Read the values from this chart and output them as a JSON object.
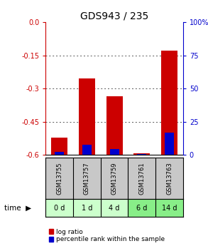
{
  "title": "GDS943 / 235",
  "samples": [
    "GSM13755",
    "GSM13757",
    "GSM13759",
    "GSM13761",
    "GSM13763"
  ],
  "time_labels": [
    "0 d",
    "1 d",
    "4 d",
    "6 d",
    "14 d"
  ],
  "log_ratio": [
    -0.52,
    -0.255,
    -0.335,
    -0.593,
    -0.13
  ],
  "percentile_rank": [
    2.5,
    7.5,
    4.5,
    0.8,
    17
  ],
  "ylim_left": [
    -0.6,
    0.0
  ],
  "ylim_right": [
    0,
    100
  ],
  "yticks_left": [
    0.0,
    -0.15,
    -0.3,
    -0.45,
    -0.6
  ],
  "yticks_right": [
    100,
    75,
    50,
    25,
    0
  ],
  "bar_width": 0.6,
  "red_color": "#cc0000",
  "blue_color": "#0000cc",
  "grid_color": "#555555",
  "plot_bg": "#ffffff",
  "sample_bg": "#c8c8c8",
  "time_bg_light": "#ccffcc",
  "time_bg_dark": "#88ee88",
  "legend_red": "log ratio",
  "legend_blue": "percentile rank within the sample",
  "title_fontsize": 10,
  "axis_fontsize": 7,
  "tick_fontsize": 7
}
